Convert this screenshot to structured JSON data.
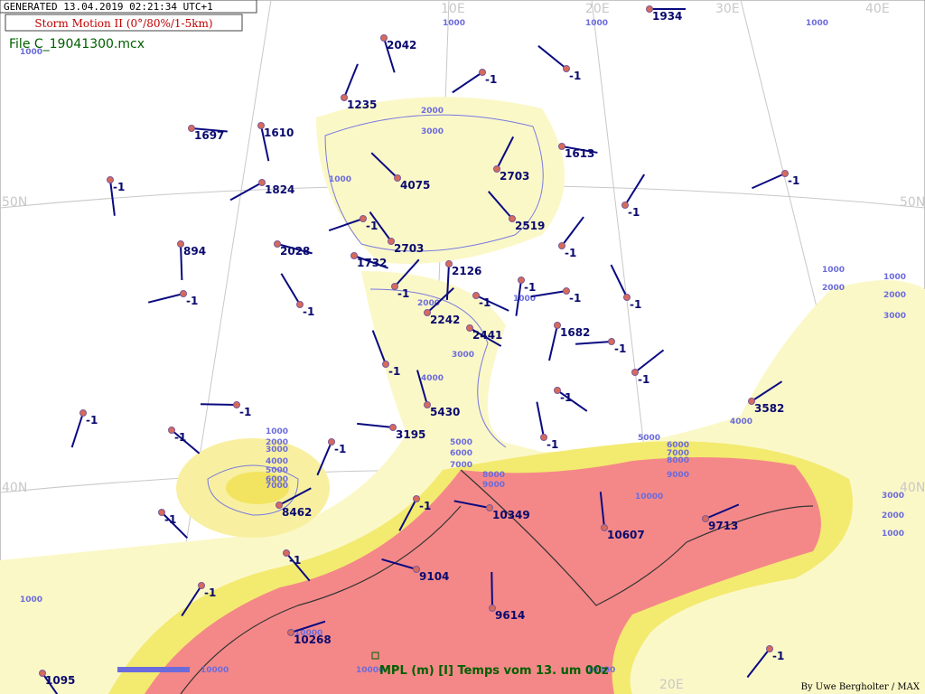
{
  "header": {
    "generated": "GENERATED 13.04.2019 02:21:34 UTC+1",
    "title": "Storm Motion II (0°/80%/1-5km)",
    "file": "File C_19041300.mcx"
  },
  "grid_labels": [
    "10E",
    "20E",
    "30E",
    "40E",
    "50N",
    "50N",
    "40N",
    "40N",
    "20E"
  ],
  "stations": [
    "1934",
    "2042",
    "-1",
    "-1",
    "1235",
    "1697",
    "1610",
    "1824",
    "4075",
    "2703",
    "1613",
    "-1",
    "-1",
    "2519",
    "-1",
    "2028",
    "894",
    "-1",
    "2703",
    "-1",
    "1732",
    "2126",
    "-1",
    "-1",
    "-1",
    "-1",
    "-1",
    "-1",
    "-1",
    "2242",
    "2441",
    "1682",
    "-1",
    "-1",
    "-1",
    "-1",
    "-1",
    "-1",
    "5430",
    "3582",
    "-1",
    "-1",
    "3195",
    "-1",
    "8462",
    "-1",
    "-1",
    "10349",
    "10607",
    "9713",
    "-1",
    "-1",
    "9104",
    "9614",
    "10268",
    "1095",
    "-1"
  ],
  "contour_labels": [
    "1000",
    "1000",
    "1000",
    "1000",
    "2000",
    "3000",
    "1000",
    "1000",
    "2000",
    "3000",
    "4000",
    "1000",
    "2000",
    "1000",
    "2000",
    "3000",
    "4000",
    "5000",
    "6000",
    "7000",
    "8000",
    "9000",
    "5000",
    "6000",
    "7000",
    "8000",
    "9000",
    "10000",
    "1000",
    "2000",
    "3000",
    "4000",
    "5000",
    "6000",
    "7000",
    "3000",
    "2000",
    "1000",
    "1000",
    "10000",
    "10000",
    "10000",
    "10000"
  ],
  "legend": {
    "caption": "MPL (m) [I]  Temps vom 13. um 00z"
  },
  "credit": "By Uwe Bergholter / MAX"
}
